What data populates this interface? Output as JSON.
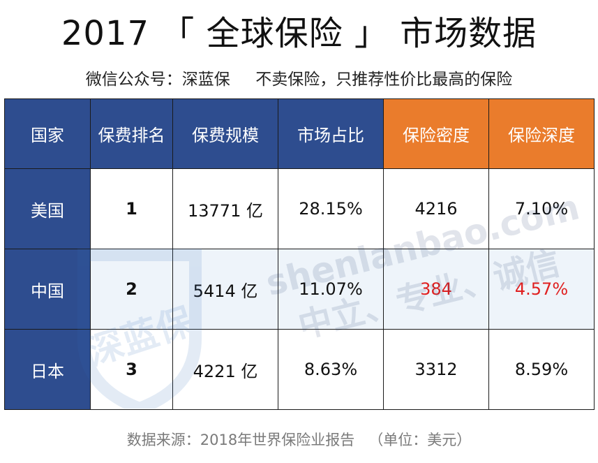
{
  "title": "2017 「 全球保险 」 市场数据",
  "subtitle": "微信公众号：深蓝保     不卖保险，只推荐性价比最高的保险",
  "table": {
    "headers": [
      "国家",
      "保费排名",
      "保费规模",
      "市场占比",
      "保险密度",
      "保险深度"
    ],
    "rows": [
      {
        "country": "美国",
        "rank": "1",
        "premium": "13771 亿",
        "share": "28.15%",
        "density": "4216",
        "depth": "7.10%"
      },
      {
        "country": "中国",
        "rank": "2",
        "premium": "5414 亿",
        "share": "11.07%",
        "density": "384",
        "depth": "4.57%"
      },
      {
        "country": "日本",
        "rank": "3",
        "premium": "4221 亿",
        "share": "8.63%",
        "density": "3312",
        "depth": "8.59%"
      }
    ]
  },
  "watermark": {
    "logo_text": "深蓝保",
    "url": "shenlanbao.com",
    "slogan": "中立、专业、诚信"
  },
  "footer": "数据来源：2018年世界保险业报告   （单位：美元）",
  "colors": {
    "header_blue": "#2e4d8f",
    "header_orange": "#ea7c2c",
    "highlight_red": "#e02020"
  }
}
